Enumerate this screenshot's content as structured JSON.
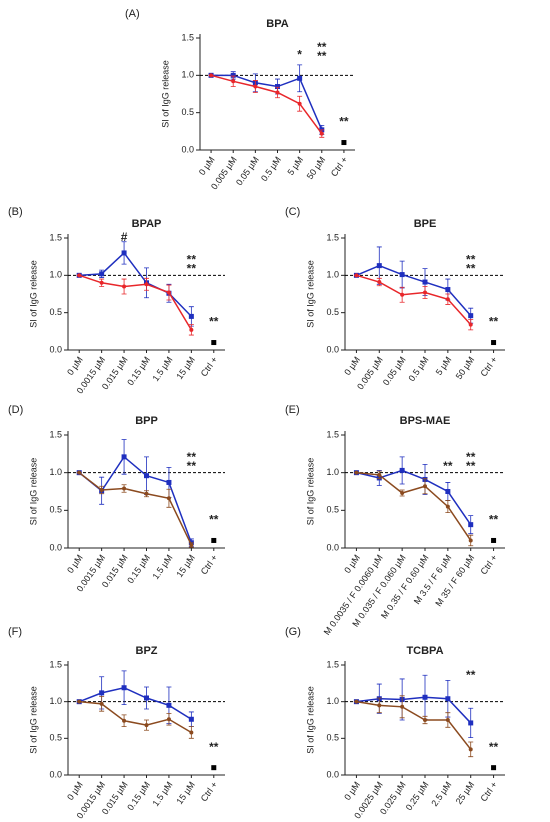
{
  "chart_data": [
    {
      "type": "line",
      "letter": "(A)",
      "title": "BPA",
      "ylabel": "SI of IgG release",
      "categories": [
        "0 µM",
        "0.005 µM",
        "0.05 µM",
        "0.5 µM",
        "5 µM",
        "50 µM",
        "Ctrl +"
      ],
      "ylim": [
        0,
        1.5
      ],
      "yticks": [
        {
          "value": 0,
          "label": "0.0"
        },
        0.5,
        {
          "value": 1,
          "label": "1.0"
        },
        1.5
      ],
      "hline": 1,
      "series": [
        {
          "color": "#1f2fbf",
          "marker": "square",
          "values": [
            1.0,
            1.0,
            0.9,
            0.85,
            0.96,
            0.27,
            null
          ],
          "errors": [
            0,
            0.05,
            0.12,
            0.1,
            0.18,
            0.06,
            null
          ]
        },
        {
          "color": "#e8262a",
          "marker": "circle",
          "values": [
            1.0,
            0.92,
            0.85,
            0.77,
            0.62,
            0.22,
            null
          ],
          "errors": [
            0,
            0.07,
            0.08,
            0.07,
            0.1,
            0.05,
            null
          ]
        },
        {
          "color": "#000000",
          "marker": "square",
          "values": [
            null,
            null,
            null,
            null,
            null,
            null,
            0.1
          ]
        }
      ],
      "annotations": [
        {
          "text": "*",
          "x": "5 µM",
          "y": 1.27,
          "color": "#e8262a"
        },
        {
          "text": "**",
          "x": "50 µM",
          "y": 1.37,
          "color": "#1f2fbf"
        },
        {
          "text": "**",
          "x": "50 µM",
          "y": 1.25,
          "color": "#e8262a"
        },
        {
          "text": "**",
          "x": "Ctrl +",
          "y": 0.37,
          "color": "#000000"
        }
      ]
    },
    {
      "type": "line",
      "letter": "(B)",
      "title": "BPAP",
      "ylabel": "SI of IgG release",
      "categories": [
        "0 µM",
        "0.0015 µM",
        "0.015 µM",
        "0.15 µM",
        "1.5 µM",
        "15 µM",
        "Ctrl +"
      ],
      "ylim": [
        0,
        1.5
      ],
      "yticks": [
        {
          "value": 0,
          "label": "0.0"
        },
        0.5,
        {
          "value": 1,
          "label": "1.0"
        },
        1.5
      ],
      "hline": 1,
      "series": [
        {
          "color": "#1f2fbf",
          "marker": "square",
          "values": [
            1.0,
            1.02,
            1.3,
            0.9,
            0.76,
            0.45,
            null
          ],
          "errors": [
            0,
            0.05,
            0.15,
            0.2,
            0.12,
            0.13,
            null
          ]
        },
        {
          "color": "#e8262a",
          "marker": "circle",
          "values": [
            1.0,
            0.9,
            0.85,
            0.88,
            0.77,
            0.27,
            null
          ],
          "errors": [
            0,
            0.05,
            0.1,
            0.08,
            0.1,
            0.07,
            null
          ]
        },
        {
          "color": "#000000",
          "marker": "square",
          "values": [
            null,
            null,
            null,
            null,
            null,
            null,
            0.1
          ]
        }
      ],
      "annotations": [
        {
          "text": "#",
          "x": "0.015 µM",
          "y": 1.5,
          "color": "#000000"
        },
        {
          "text": "**",
          "x": "15 µM",
          "y": 1.2,
          "color": "#1f2fbf"
        },
        {
          "text": "**",
          "x": "15 µM",
          "y": 1.08,
          "color": "#e8262a"
        },
        {
          "text": "**",
          "x": "Ctrl +",
          "y": 0.37,
          "color": "#000000"
        }
      ]
    },
    {
      "type": "line",
      "letter": "(C)",
      "title": "BPE",
      "ylabel": "SI of IgG release",
      "categories": [
        "0 µM",
        "0.005 µM",
        "0.05 µM",
        "0.5 µM",
        "5 µM",
        "50 µM",
        "Ctrl +"
      ],
      "ylim": [
        0,
        1.5
      ],
      "yticks": [
        {
          "value": 0,
          "label": "0.0"
        },
        0.5,
        {
          "value": 1,
          "label": "1.0"
        },
        1.5
      ],
      "hline": 1,
      "series": [
        {
          "color": "#1f2fbf",
          "marker": "square",
          "values": [
            1.0,
            1.13,
            1.01,
            0.91,
            0.81,
            0.46,
            null
          ],
          "errors": [
            0,
            0.25,
            0.18,
            0.18,
            0.14,
            0.1,
            null
          ]
        },
        {
          "color": "#e8262a",
          "marker": "circle",
          "values": [
            1.0,
            0.91,
            0.74,
            0.77,
            0.68,
            0.34,
            null
          ],
          "errors": [
            0,
            0.05,
            0.1,
            0.08,
            0.07,
            0.07,
            null
          ]
        },
        {
          "color": "#000000",
          "marker": "square",
          "values": [
            null,
            null,
            null,
            null,
            null,
            null,
            0.1
          ]
        }
      ],
      "annotations": [
        {
          "text": "**",
          "x": "50 µM",
          "y": 1.2,
          "color": "#1f2fbf"
        },
        {
          "text": "**",
          "x": "50 µM",
          "y": 1.08,
          "color": "#e8262a"
        },
        {
          "text": "**",
          "x": "Ctrl +",
          "y": 0.37,
          "color": "#000000"
        }
      ]
    },
    {
      "type": "line",
      "letter": "(D)",
      "title": "BPP",
      "ylabel": "SI of IgG release",
      "categories": [
        "0 µM",
        "0.0015 µM",
        "0.015 µM",
        "0.15 µM",
        "1.5 µM",
        "15 µM",
        "Ctrl +"
      ],
      "ylim": [
        0,
        1.5
      ],
      "yticks": [
        {
          "value": 0,
          "label": "0.0"
        },
        0.5,
        {
          "value": 1,
          "label": "1.0"
        },
        1.5
      ],
      "hline": 1,
      "series": [
        {
          "color": "#1f2fbf",
          "marker": "square",
          "values": [
            1.0,
            0.76,
            1.21,
            0.96,
            0.87,
            0.07,
            null
          ],
          "errors": [
            0,
            0.18,
            0.23,
            0.25,
            0.2,
            0.05,
            null
          ]
        },
        {
          "color": "#8b4a1f",
          "marker": "circle",
          "values": [
            1.0,
            0.77,
            0.79,
            0.72,
            0.66,
            0.04,
            null
          ],
          "errors": [
            0,
            0.05,
            0.05,
            0.04,
            0.12,
            0.03,
            null
          ]
        },
        {
          "color": "#000000",
          "marker": "square",
          "values": [
            null,
            null,
            null,
            null,
            null,
            null,
            0.1
          ]
        }
      ],
      "annotations": [
        {
          "text": "**",
          "x": "15 µM",
          "y": 1.2,
          "color": "#1f2fbf"
        },
        {
          "text": "**",
          "x": "15 µM",
          "y": 1.08,
          "color": "#8b4a1f"
        },
        {
          "text": "**",
          "x": "Ctrl +",
          "y": 0.37,
          "color": "#000000"
        }
      ]
    },
    {
      "type": "line",
      "letter": "(E)",
      "title": "BPS-MAE",
      "ylabel": "SI of IgG release",
      "categories": [
        "0 µM",
        "M 0.0035 / F 0.0060 µM",
        "M 0.035 / F 0.060 µM",
        "M 0.35 / F 0.60 µM",
        "M 3.5 / F 6 µM",
        "M 35 / F 60 µM",
        "Ctrl +"
      ],
      "ylim": [
        0,
        1.5
      ],
      "yticks": [
        {
          "value": 0,
          "label": "0.0"
        },
        0.5,
        {
          "value": 1,
          "label": "1.0"
        },
        1.5
      ],
      "hline": 1,
      "series": [
        {
          "color": "#1f2fbf",
          "marker": "square",
          "values": [
            1.0,
            0.93,
            1.03,
            0.91,
            0.75,
            0.31,
            null
          ],
          "errors": [
            0,
            0.1,
            0.18,
            0.2,
            0.12,
            0.12,
            null
          ]
        },
        {
          "color": "#8b4a1f",
          "marker": "circle",
          "values": [
            1.0,
            0.97,
            0.73,
            0.82,
            0.55,
            0.1,
            null
          ],
          "errors": [
            0,
            0.05,
            0.04,
            0.1,
            0.08,
            0.07,
            null
          ]
        },
        {
          "color": "#000000",
          "marker": "square",
          "values": [
            null,
            null,
            null,
            null,
            null,
            null,
            0.1
          ]
        }
      ],
      "annotations": [
        {
          "text": "**",
          "x": "M 3.5 / F 6 µM",
          "y": 1.08,
          "color": "#8b4a1f"
        },
        {
          "text": "**",
          "x": "M 35 / F 60 µM",
          "y": 1.2,
          "color": "#1f2fbf"
        },
        {
          "text": "**",
          "x": "M 35 / F 60 µM",
          "y": 1.08,
          "color": "#8b4a1f"
        },
        {
          "text": "**",
          "x": "Ctrl +",
          "y": 0.37,
          "color": "#000000"
        }
      ]
    },
    {
      "type": "line",
      "letter": "(F)",
      "title": "BPZ",
      "ylabel": "SI of IgG release",
      "categories": [
        "0 µM",
        "0.0015 µM",
        "0.015 µM",
        "0.15 µM",
        "1.5 µM",
        "15 µM",
        "Ctrl +"
      ],
      "ylim": [
        0,
        1.5
      ],
      "yticks": [
        {
          "value": 0,
          "label": "0.0"
        },
        0.5,
        {
          "value": 1,
          "label": "1.0"
        },
        1.5
      ],
      "hline": 1,
      "series": [
        {
          "color": "#1f2fbf",
          "marker": "square",
          "values": [
            1.0,
            1.12,
            1.19,
            1.05,
            0.95,
            0.76,
            null
          ],
          "errors": [
            0,
            0.22,
            0.23,
            0.15,
            0.25,
            0.1,
            null
          ]
        },
        {
          "color": "#8b4a1f",
          "marker": "circle",
          "values": [
            1.0,
            0.97,
            0.74,
            0.68,
            0.76,
            0.58,
            null
          ],
          "errors": [
            0,
            0.1,
            0.08,
            0.07,
            0.08,
            0.08,
            null
          ]
        },
        {
          "color": "#000000",
          "marker": "square",
          "values": [
            null,
            null,
            null,
            null,
            null,
            null,
            0.1
          ]
        }
      ],
      "annotations": [
        {
          "text": "**",
          "x": "Ctrl +",
          "y": 0.37,
          "color": "#000000"
        }
      ]
    },
    {
      "type": "line",
      "letter": "(G)",
      "title": "TCBPA",
      "ylabel": "SI of IgG release",
      "categories": [
        "0 µM",
        "0.0025 µM",
        "0.025 µM",
        "0.25 µM",
        "2.5 µM",
        "25 µM",
        "Ctrl +"
      ],
      "ylim": [
        0,
        1.5
      ],
      "yticks": [
        {
          "value": 0,
          "label": "0.0"
        },
        0.5,
        {
          "value": 1,
          "label": "1.0"
        },
        1.5
      ],
      "hline": 1,
      "series": [
        {
          "color": "#1f2fbf",
          "marker": "square",
          "values": [
            1.0,
            1.04,
            1.03,
            1.06,
            1.04,
            0.71,
            null
          ],
          "errors": [
            0,
            0.2,
            0.28,
            0.3,
            0.25,
            0.2,
            null
          ]
        },
        {
          "color": "#8b4a1f",
          "marker": "circle",
          "values": [
            1.0,
            0.95,
            0.93,
            0.75,
            0.75,
            0.35,
            null
          ],
          "errors": [
            0,
            0.1,
            0.15,
            0.05,
            0.1,
            0.1,
            null
          ]
        },
        {
          "color": "#000000",
          "marker": "square",
          "values": [
            null,
            null,
            null,
            null,
            null,
            null,
            0.1
          ]
        }
      ],
      "annotations": [
        {
          "text": "**",
          "x": "25 µM",
          "y": 1.35,
          "color": "#8b4a1f"
        },
        {
          "text": "**",
          "x": "Ctrl +",
          "y": 0.37,
          "color": "#000000"
        }
      ]
    }
  ]
}
